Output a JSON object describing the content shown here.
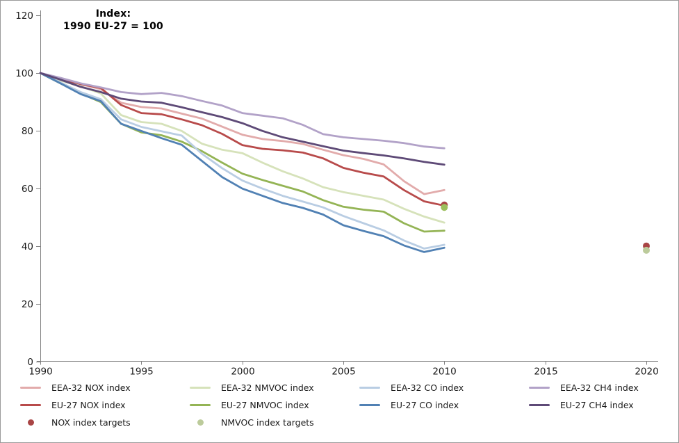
{
  "title": {
    "line1": "Index:",
    "line2": "1990 EU-27 = 100"
  },
  "chart_data": {
    "type": "line",
    "x": [
      1990,
      1991,
      1992,
      1993,
      1994,
      1995,
      1996,
      1997,
      1998,
      1999,
      2000,
      2001,
      2002,
      2003,
      2004,
      2005,
      2006,
      2007,
      2008,
      2009,
      2010
    ],
    "series": [
      {
        "name": "EEA-32 NOX index",
        "color": "#e2abab",
        "values": [
          100,
          97.9,
          96.1,
          94.4,
          89.7,
          88.2,
          87.7,
          85.9,
          84.2,
          81.4,
          78.6,
          77.1,
          76.4,
          75.4,
          73.4,
          71.5,
          70.2,
          68.3,
          62.5,
          58.0,
          59.4
        ]
      },
      {
        "name": "EU-27 NOX index",
        "color": "#b84b4b",
        "values": [
          100,
          97.9,
          96.2,
          94.8,
          88.9,
          86.1,
          85.7,
          83.9,
          81.9,
          78.9,
          75.0,
          73.7,
          73.2,
          72.4,
          70.4,
          67.1,
          65.4,
          64.1,
          59.4,
          55.5,
          54.0
        ]
      },
      {
        "name": "EEA-32 NMVOC index",
        "color": "#d6e2ba",
        "values": [
          100,
          97.4,
          95.4,
          92.9,
          85.4,
          83.0,
          82.4,
          79.9,
          75.5,
          73.4,
          72.2,
          68.9,
          65.9,
          63.4,
          60.4,
          58.7,
          57.4,
          56.1,
          52.9,
          50.2,
          48.1
        ]
      },
      {
        "name": "EU-27 NMVOC index",
        "color": "#94b455",
        "values": [
          100,
          96.4,
          92.9,
          89.9,
          82.4,
          79.4,
          78.4,
          76.2,
          72.9,
          68.9,
          65.1,
          62.9,
          60.9,
          58.9,
          55.9,
          53.6,
          52.6,
          51.9,
          47.9,
          45.0,
          45.3
        ]
      },
      {
        "name": "EEA-32 CO index",
        "color": "#b9cde3",
        "values": [
          100,
          96.7,
          93.4,
          90.9,
          83.9,
          81.3,
          79.8,
          78.3,
          72.0,
          67.0,
          62.7,
          59.9,
          57.4,
          55.4,
          53.4,
          50.4,
          47.9,
          45.4,
          41.9,
          39.1,
          40.4
        ]
      },
      {
        "name": "EU-27 CO index",
        "color": "#5181b4",
        "values": [
          100,
          96.4,
          92.7,
          90.2,
          82.4,
          79.9,
          77.4,
          75.1,
          69.5,
          63.9,
          59.9,
          57.4,
          54.9,
          53.2,
          50.9,
          47.2,
          45.2,
          43.4,
          40.2,
          37.9,
          39.4
        ]
      },
      {
        "name": "EEA-32 CH4 index",
        "color": "#b2a2c8",
        "values": [
          100,
          98.3,
          96.4,
          95.0,
          93.4,
          92.7,
          93.1,
          92.0,
          90.3,
          88.7,
          86.1,
          85.2,
          84.3,
          82.0,
          78.8,
          77.7,
          77.1,
          76.5,
          75.7,
          74.5,
          73.9
        ]
      },
      {
        "name": "EU-27 CH4 index",
        "color": "#5e4a77",
        "values": [
          100,
          97.7,
          95.2,
          93.4,
          91.1,
          90.1,
          89.7,
          88.1,
          86.4,
          84.7,
          82.6,
          79.9,
          77.7,
          76.2,
          74.6,
          73.1,
          72.2,
          71.4,
          70.4,
          69.2,
          68.2
        ]
      }
    ],
    "targets": [
      {
        "name": "NOX index targets",
        "color": "#a94545",
        "points": [
          {
            "year": 2010,
            "value": 54.2
          },
          {
            "year": 2020,
            "value": 40.0
          }
        ]
      },
      {
        "name": "NMVOC index targets",
        "color": "#bccb9b",
        "points": [
          {
            "year": 2010,
            "value": 53.4,
            "color": "#9cbf5d"
          },
          {
            "year": 2020,
            "value": 38.5
          }
        ]
      }
    ],
    "xlabel": "",
    "ylabel": "",
    "ylim": [
      0,
      120
    ],
    "xlim": [
      1990,
      2020
    ],
    "y_ticks": [
      "0",
      "20",
      "40",
      "60",
      "80",
      "100",
      "120"
    ],
    "x_ticks": [
      "1990",
      "1995",
      "2000",
      "2005",
      "2010",
      "2015",
      "2020"
    ],
    "grid": false,
    "legend_position": "bottom"
  },
  "legend": {
    "columns": [
      {
        "items": [
          {
            "type": "line",
            "color": "#e2abab",
            "label": "EEA-32 NOX index"
          },
          {
            "type": "line",
            "color": "#b84b4b",
            "label": "EU-27 NOX index"
          },
          {
            "type": "dot",
            "color": "#a94545",
            "label": "NOX index targets"
          }
        ]
      },
      {
        "items": [
          {
            "type": "line",
            "color": "#d6e2ba",
            "label": "EEA-32 NMVOC index"
          },
          {
            "type": "line",
            "color": "#94b455",
            "label": "EU-27 NMVOC index"
          },
          {
            "type": "dot",
            "color": "#bccb9b",
            "label": "NMVOC index targets"
          }
        ]
      },
      {
        "items": [
          {
            "type": "line",
            "color": "#b9cde3",
            "label": "EEA-32 CO index"
          },
          {
            "type": "line",
            "color": "#5181b4",
            "label": "EU-27 CO index"
          }
        ]
      },
      {
        "items": [
          {
            "type": "line",
            "color": "#b2a2c8",
            "label": "EEA-32 CH4 index"
          },
          {
            "type": "line",
            "color": "#5e4a77",
            "label": "EU-27 CH4 index"
          }
        ]
      }
    ]
  },
  "style": {
    "axis_color": "#808080",
    "tick_label_color": "#1a1a1a"
  }
}
